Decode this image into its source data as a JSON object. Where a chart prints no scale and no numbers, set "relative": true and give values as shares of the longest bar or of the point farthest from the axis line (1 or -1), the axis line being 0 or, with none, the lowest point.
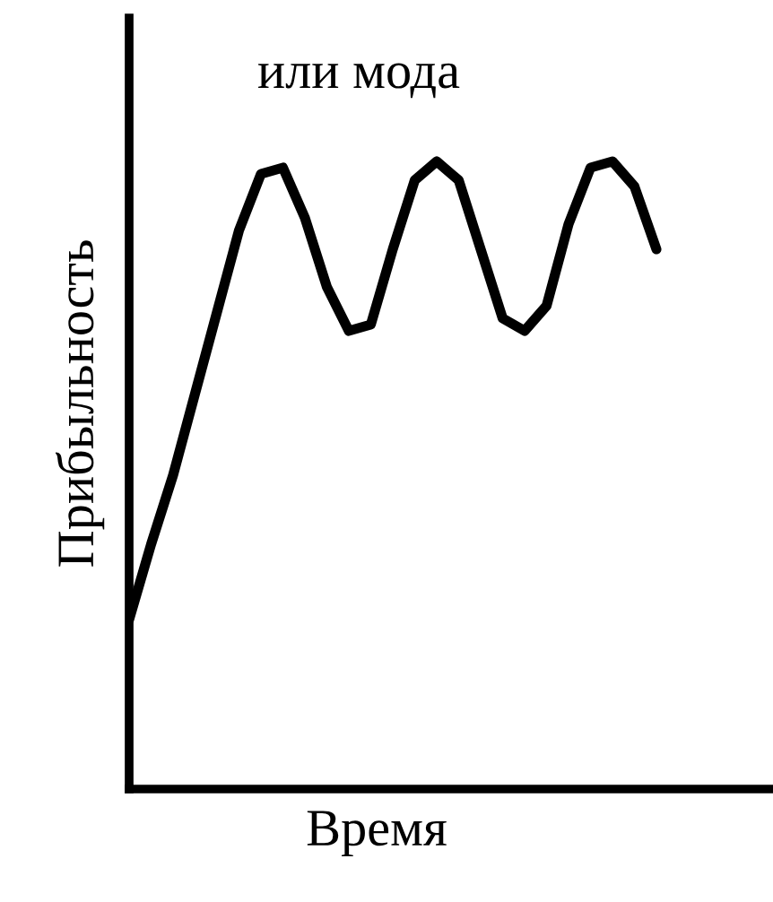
{
  "chart_data": {
    "type": "line",
    "title": "или мода",
    "xlabel": "Время",
    "ylabel": "Прибыльность",
    "relative": true,
    "color": "#000000",
    "marker": "none",
    "line_style": "solid",
    "legend": false,
    "categories": [
      null,
      null,
      null,
      null,
      null,
      null,
      null,
      null,
      null,
      null,
      null,
      null,
      null,
      null,
      null,
      null,
      null,
      null,
      null,
      null,
      null,
      null,
      null,
      null,
      null
    ],
    "values": [
      0.27,
      0.39,
      0.5,
      0.63,
      0.76,
      0.89,
      0.98,
      0.99,
      0.91,
      0.8,
      0.73,
      0.74,
      0.86,
      0.97,
      1.0,
      0.97,
      0.86,
      0.75,
      0.73,
      0.77,
      0.9,
      0.99,
      1.0,
      0.96,
      0.86
    ]
  }
}
